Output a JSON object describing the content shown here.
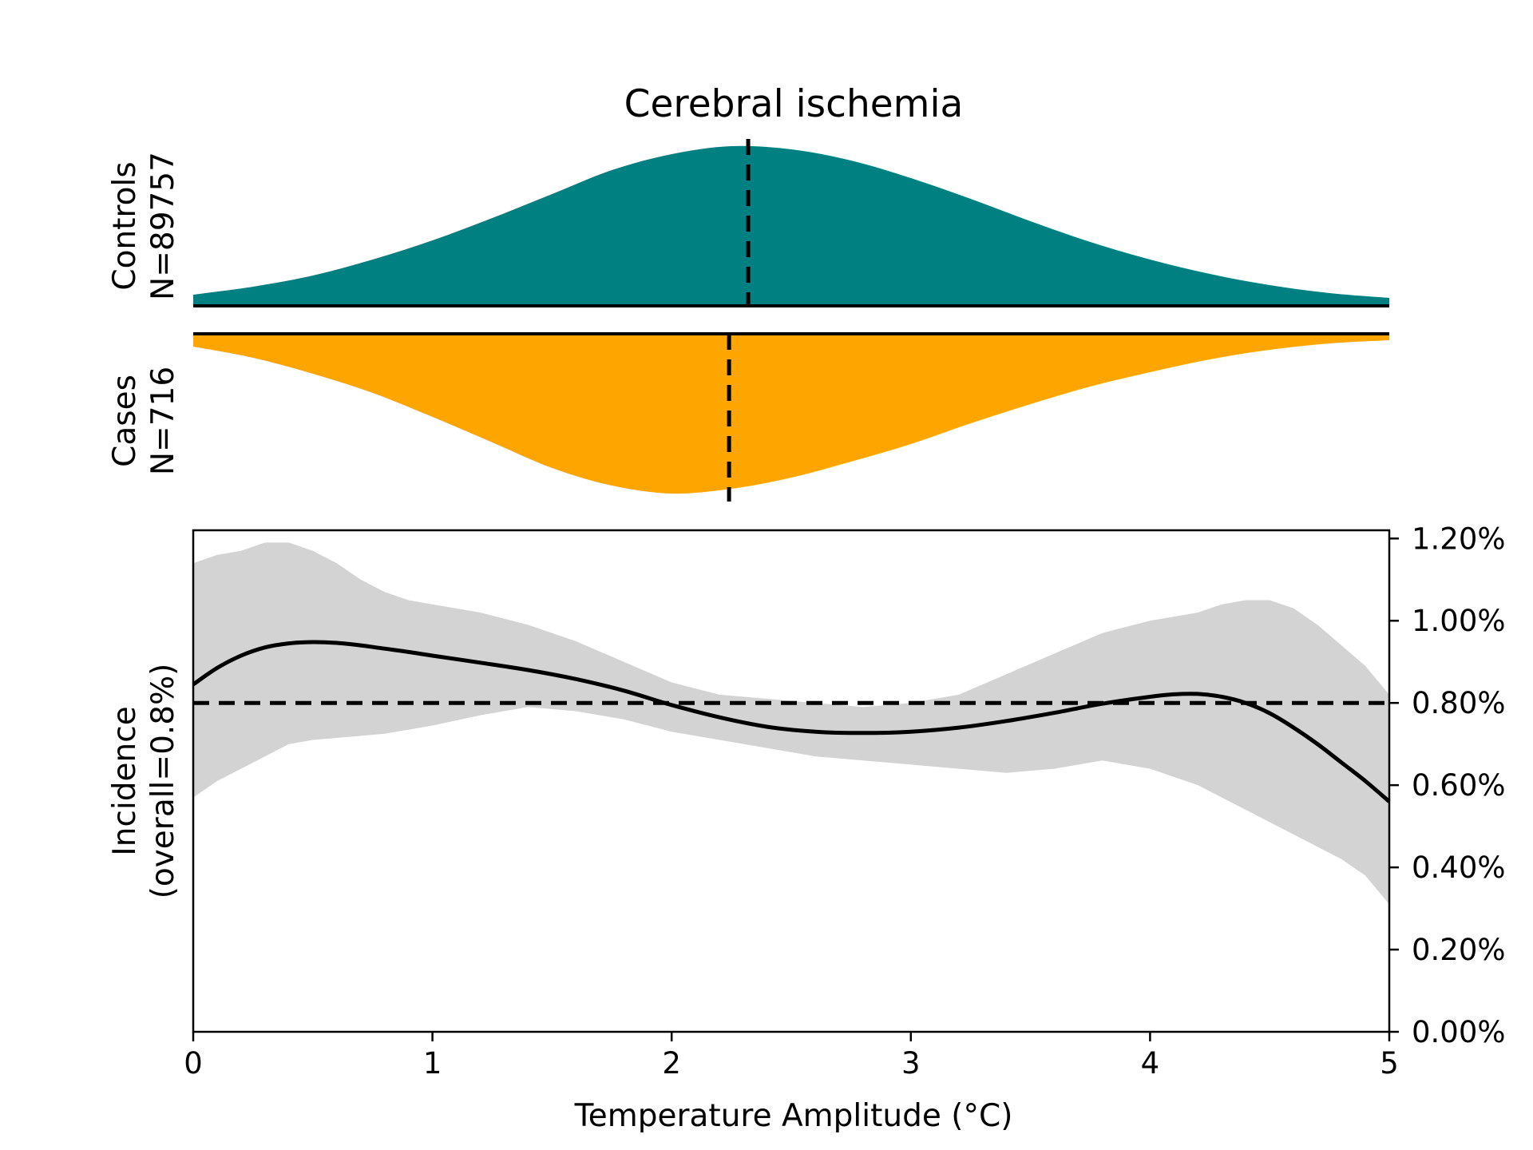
{
  "chart_data": {
    "type": "area",
    "title": "Cerebral ischemia",
    "xlabel": "Temperature Amplitude (°C)",
    "xlim": [
      0,
      5
    ],
    "x_ticks": [
      0,
      1,
      2,
      3,
      4,
      5
    ],
    "x_tick_labels": [
      "0",
      "1",
      "2",
      "3",
      "4",
      "5"
    ],
    "distributions": {
      "controls": {
        "label_line1": "Controls",
        "label_line2": "N=89757",
        "color": "#008080",
        "median": 2.32,
        "x": [
          0,
          0.25,
          0.5,
          0.75,
          1.0,
          1.25,
          1.5,
          1.75,
          2.0,
          2.25,
          2.5,
          2.75,
          3.0,
          3.25,
          3.5,
          3.75,
          4.0,
          4.25,
          4.5,
          4.75,
          5.0
        ],
        "density": [
          0.07,
          0.12,
          0.19,
          0.29,
          0.41,
          0.55,
          0.7,
          0.85,
          0.95,
          1.0,
          0.98,
          0.91,
          0.8,
          0.67,
          0.53,
          0.4,
          0.29,
          0.2,
          0.13,
          0.08,
          0.05
        ]
      },
      "cases": {
        "label_line1": "Cases",
        "label_line2": "N=716",
        "color": "#ffa500",
        "median": 2.24,
        "x": [
          0,
          0.25,
          0.5,
          0.75,
          1.0,
          1.25,
          1.5,
          1.75,
          2.0,
          2.25,
          2.5,
          2.75,
          3.0,
          3.25,
          3.5,
          3.75,
          4.0,
          4.25,
          4.5,
          4.75,
          5.0
        ],
        "density": [
          0.08,
          0.15,
          0.25,
          0.37,
          0.52,
          0.68,
          0.84,
          0.95,
          1.0,
          0.97,
          0.9,
          0.8,
          0.69,
          0.56,
          0.44,
          0.33,
          0.24,
          0.16,
          0.1,
          0.06,
          0.04
        ]
      }
    },
    "incidence": {
      "ylabel_line1": "Incidence",
      "ylabel_line2": "(overall=0.8%)",
      "ylim": [
        0,
        1.22
      ],
      "y_ticks": [
        0,
        0.2,
        0.4,
        0.6,
        0.8,
        1.0,
        1.2
      ],
      "y_tick_labels": [
        "0.00%",
        "0.20%",
        "0.40%",
        "0.60%",
        "0.80%",
        "1.00%",
        "1.20%"
      ],
      "y_axis_side": "right",
      "overall": 0.8,
      "line_color": "#000000",
      "band_color": "#d3d3d3",
      "x": [
        0,
        0.1,
        0.2,
        0.3,
        0.4,
        0.5,
        0.6,
        0.7,
        0.8,
        0.9,
        1.0,
        1.2,
        1.4,
        1.6,
        1.8,
        2.0,
        2.2,
        2.4,
        2.6,
        2.8,
        3.0,
        3.2,
        3.4,
        3.6,
        3.8,
        4.0,
        4.1,
        4.2,
        4.3,
        4.4,
        4.5,
        4.6,
        4.7,
        4.8,
        4.9,
        5.0
      ],
      "estimate": [
        0.845,
        0.885,
        0.915,
        0.935,
        0.945,
        0.948,
        0.946,
        0.94,
        0.932,
        0.924,
        0.915,
        0.898,
        0.88,
        0.858,
        0.83,
        0.795,
        0.765,
        0.742,
        0.73,
        0.727,
        0.73,
        0.74,
        0.756,
        0.776,
        0.798,
        0.815,
        0.821,
        0.822,
        0.815,
        0.8,
        0.775,
        0.74,
        0.7,
        0.655,
        0.61,
        0.56
      ],
      "upper": [
        1.14,
        1.16,
        1.17,
        1.19,
        1.19,
        1.17,
        1.14,
        1.1,
        1.07,
        1.05,
        1.04,
        1.02,
        0.99,
        0.95,
        0.9,
        0.85,
        0.82,
        0.81,
        0.8,
        0.79,
        0.8,
        0.82,
        0.87,
        0.92,
        0.97,
        1.0,
        1.01,
        1.02,
        1.04,
        1.05,
        1.05,
        1.03,
        0.99,
        0.94,
        0.89,
        0.82
      ],
      "lower": [
        0.57,
        0.61,
        0.64,
        0.67,
        0.7,
        0.71,
        0.715,
        0.72,
        0.725,
        0.735,
        0.745,
        0.77,
        0.79,
        0.78,
        0.76,
        0.73,
        0.71,
        0.69,
        0.67,
        0.66,
        0.65,
        0.64,
        0.63,
        0.64,
        0.66,
        0.64,
        0.62,
        0.6,
        0.57,
        0.54,
        0.51,
        0.48,
        0.45,
        0.42,
        0.38,
        0.31
      ]
    }
  }
}
